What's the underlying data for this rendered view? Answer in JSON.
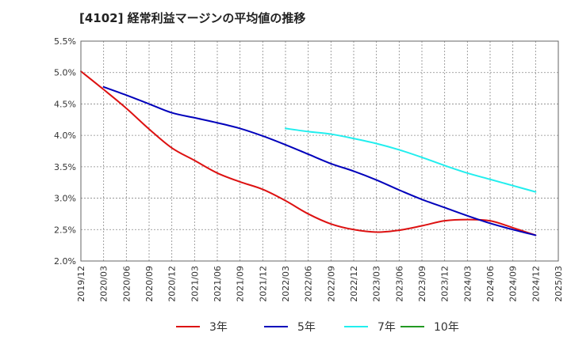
{
  "chart_data": {
    "type": "line",
    "title": "[4102]  経常利益マージンの平均値の推移",
    "xlabel": "",
    "ylabel": "",
    "ylim": [
      2.0,
      5.5
    ],
    "yticks": [
      "2.0%",
      "2.5%",
      "3.0%",
      "3.5%",
      "4.0%",
      "4.5%",
      "5.0%",
      "5.5%"
    ],
    "xticks": [
      "2019/12",
      "2020/03",
      "2020/06",
      "2020/09",
      "2020/12",
      "2021/03",
      "2021/06",
      "2021/09",
      "2021/12",
      "2022/03",
      "2022/06",
      "2022/09",
      "2022/12",
      "2023/03",
      "2023/06",
      "2023/09",
      "2023/12",
      "2024/03",
      "2024/06",
      "2024/09",
      "2024/12",
      "2025/03"
    ],
    "grid": true,
    "legend_position": "bottom",
    "series": [
      {
        "name": "3年",
        "color": "#dd1111",
        "x": [
          "2019/12",
          "2020/03",
          "2020/06",
          "2020/09",
          "2020/12",
          "2021/03",
          "2021/06",
          "2021/09",
          "2021/12",
          "2022/03",
          "2022/06",
          "2022/09",
          "2022/12",
          "2023/03",
          "2023/06",
          "2023/09",
          "2023/12",
          "2024/03",
          "2024/06",
          "2024/09",
          "2024/12"
        ],
        "values": [
          5.02,
          4.73,
          4.43,
          4.1,
          3.8,
          3.6,
          3.4,
          3.26,
          3.14,
          2.96,
          2.75,
          2.59,
          2.5,
          2.46,
          2.49,
          2.56,
          2.64,
          2.66,
          2.64,
          2.53,
          2.41
        ]
      },
      {
        "name": "5年",
        "color": "#0000bb",
        "x": [
          "2020/03",
          "2020/06",
          "2020/09",
          "2020/12",
          "2021/03",
          "2021/06",
          "2021/09",
          "2021/12",
          "2022/03",
          "2022/06",
          "2022/09",
          "2022/12",
          "2023/03",
          "2023/06",
          "2023/09",
          "2023/12",
          "2024/03",
          "2024/06",
          "2024/09",
          "2024/12"
        ],
        "values": [
          4.77,
          4.64,
          4.5,
          4.36,
          4.28,
          4.2,
          4.11,
          3.99,
          3.85,
          3.7,
          3.55,
          3.43,
          3.29,
          3.13,
          2.98,
          2.85,
          2.72,
          2.6,
          2.5,
          2.41
        ]
      },
      {
        "name": "7年",
        "color": "#22eeee",
        "x": [
          "2022/03",
          "2022/06",
          "2022/09",
          "2022/12",
          "2023/03",
          "2023/06",
          "2023/09",
          "2023/12",
          "2024/03",
          "2024/06",
          "2024/09",
          "2024/12"
        ],
        "values": [
          4.11,
          4.06,
          4.02,
          3.95,
          3.87,
          3.77,
          3.65,
          3.52,
          3.4,
          3.3,
          3.2,
          3.1
        ]
      },
      {
        "name": "10年",
        "color": "#229922",
        "x": [],
        "values": []
      }
    ]
  }
}
